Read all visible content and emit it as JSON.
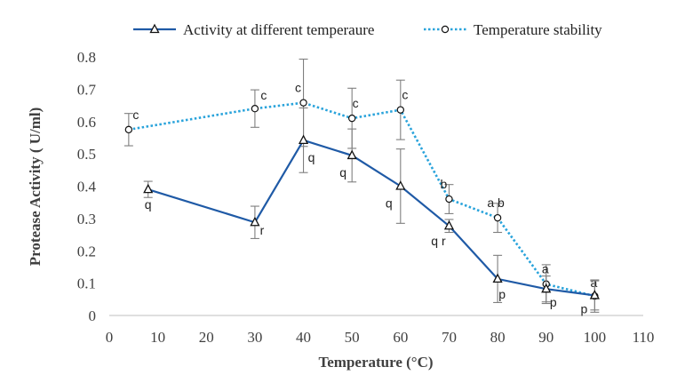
{
  "chart_data": {
    "type": "line",
    "xlabel": "Temperature (°C)",
    "ylabel": "Protease Activity ( U/ml)",
    "xlim": [
      0,
      110
    ],
    "ylim": [
      0,
      0.8
    ],
    "xticks": [
      "0",
      "10",
      "20",
      "30",
      "40",
      "50",
      "60",
      "70",
      "80",
      "90",
      "100",
      "110"
    ],
    "yticks": [
      "0",
      "0.1",
      "0.2",
      "0.3",
      "0.4",
      "0.5",
      "0.6",
      "0.7",
      "0.8"
    ],
    "legend_position": "top",
    "grid": false,
    "series": [
      {
        "name": "Activity at different  temperaure",
        "color": "#1f5aa6",
        "line_style": "solid",
        "marker": "triangle",
        "points": [
          {
            "x": 8,
            "y": 0.39,
            "err": 0.025,
            "label": "q"
          },
          {
            "x": 30,
            "y": 0.288,
            "err": 0.05,
            "label": "r"
          },
          {
            "x": 40,
            "y": 0.542,
            "err": 0.1,
            "label": "q"
          },
          {
            "x": 50,
            "y": 0.495,
            "err": 0.082,
            "label": "q"
          },
          {
            "x": 60,
            "y": 0.4,
            "err": 0.115,
            "label": "q"
          },
          {
            "x": 70,
            "y": 0.277,
            "err": 0.02,
            "label": "q r"
          },
          {
            "x": 80,
            "y": 0.113,
            "err": 0.073,
            "label": "p"
          },
          {
            "x": 90,
            "y": 0.082,
            "err": 0.04,
            "label": "p"
          },
          {
            "x": 100,
            "y": 0.062,
            "err": 0.045,
            "label": "p"
          }
        ]
      },
      {
        "name": "Temperature stability",
        "color": "#29a3db",
        "line_style": "dotted",
        "marker": "circle",
        "points": [
          {
            "x": 4,
            "y": 0.575,
            "err": 0.05,
            "label": "c"
          },
          {
            "x": 30,
            "y": 0.64,
            "err": 0.058,
            "label": "c"
          },
          {
            "x": 40,
            "y": 0.658,
            "err": 0.135,
            "label": "c"
          },
          {
            "x": 50,
            "y": 0.61,
            "err": 0.093,
            "label": "c"
          },
          {
            "x": 60,
            "y": 0.636,
            "err": 0.092,
            "label": "c"
          },
          {
            "x": 70,
            "y": 0.36,
            "err": 0.045,
            "label": "b"
          },
          {
            "x": 80,
            "y": 0.302,
            "err": 0.045,
            "label": "a b"
          },
          {
            "x": 90,
            "y": 0.097,
            "err": 0.06,
            "label": "a"
          },
          {
            "x": 100,
            "y": 0.06,
            "err": 0.05,
            "label": "a"
          }
        ]
      }
    ]
  }
}
